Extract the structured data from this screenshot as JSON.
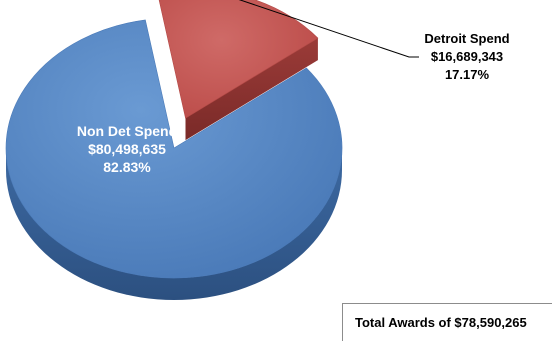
{
  "chart_data": {
    "type": "pie",
    "style": "3d-exploded",
    "slices": [
      {
        "name": "Non Det Spend",
        "value": 80498635,
        "value_label": "$80,498,635",
        "percent": 82.83,
        "percent_label": "82.83%",
        "color": "#4f81bd",
        "label_position": "inside",
        "exploded": false
      },
      {
        "name": "Detroit Spend",
        "value": 16689343,
        "value_label": "$16,689,343",
        "percent": 17.17,
        "percent_label": "17.17%",
        "color": "#c0504d",
        "label_position": "outside",
        "exploded": true
      }
    ],
    "annotation": "Total Awards of $78,590,265",
    "legend": "none"
  }
}
